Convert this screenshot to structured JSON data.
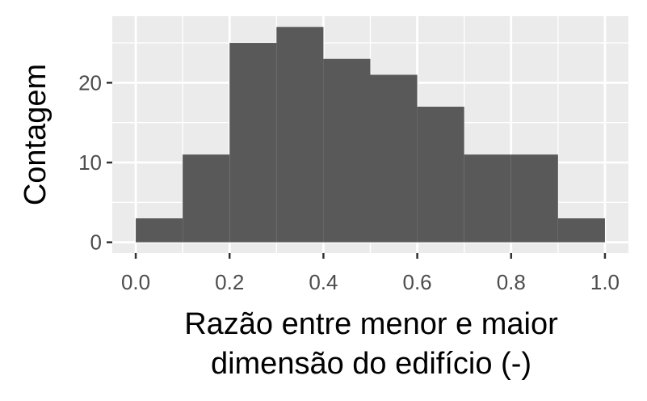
{
  "chart_data": {
    "type": "bar",
    "subtype": "histogram",
    "bins": [
      {
        "x0": 0.0,
        "x1": 0.1,
        "count": 3
      },
      {
        "x0": 0.1,
        "x1": 0.2,
        "count": 11
      },
      {
        "x0": 0.2,
        "x1": 0.3,
        "count": 25
      },
      {
        "x0": 0.3,
        "x1": 0.4,
        "count": 27
      },
      {
        "x0": 0.4,
        "x1": 0.5,
        "count": 23
      },
      {
        "x0": 0.5,
        "x1": 0.6,
        "count": 21
      },
      {
        "x0": 0.6,
        "x1": 0.7,
        "count": 17
      },
      {
        "x0": 0.7,
        "x1": 0.8,
        "count": 11
      },
      {
        "x0": 0.8,
        "x1": 0.9,
        "count": 11
      },
      {
        "x0": 0.9,
        "x1": 1.0,
        "count": 3
      }
    ],
    "xlabel_lines": [
      "Razão entre menor e maior",
      "dimensão do edifício (-)"
    ],
    "ylabel": "Contagem",
    "x_ticks": [
      "0.0",
      "0.2",
      "0.4",
      "0.6",
      "0.8",
      "1.0"
    ],
    "y_ticks": [
      "0",
      "10",
      "20"
    ],
    "xlim": [
      -0.05,
      1.05
    ],
    "ylim": [
      -1.35,
      28.35
    ],
    "grid": true,
    "colors": {
      "bar": "#595959",
      "panel": "#ebebeb",
      "grid": "#ffffff",
      "tick": "#4d4d4d"
    }
  }
}
